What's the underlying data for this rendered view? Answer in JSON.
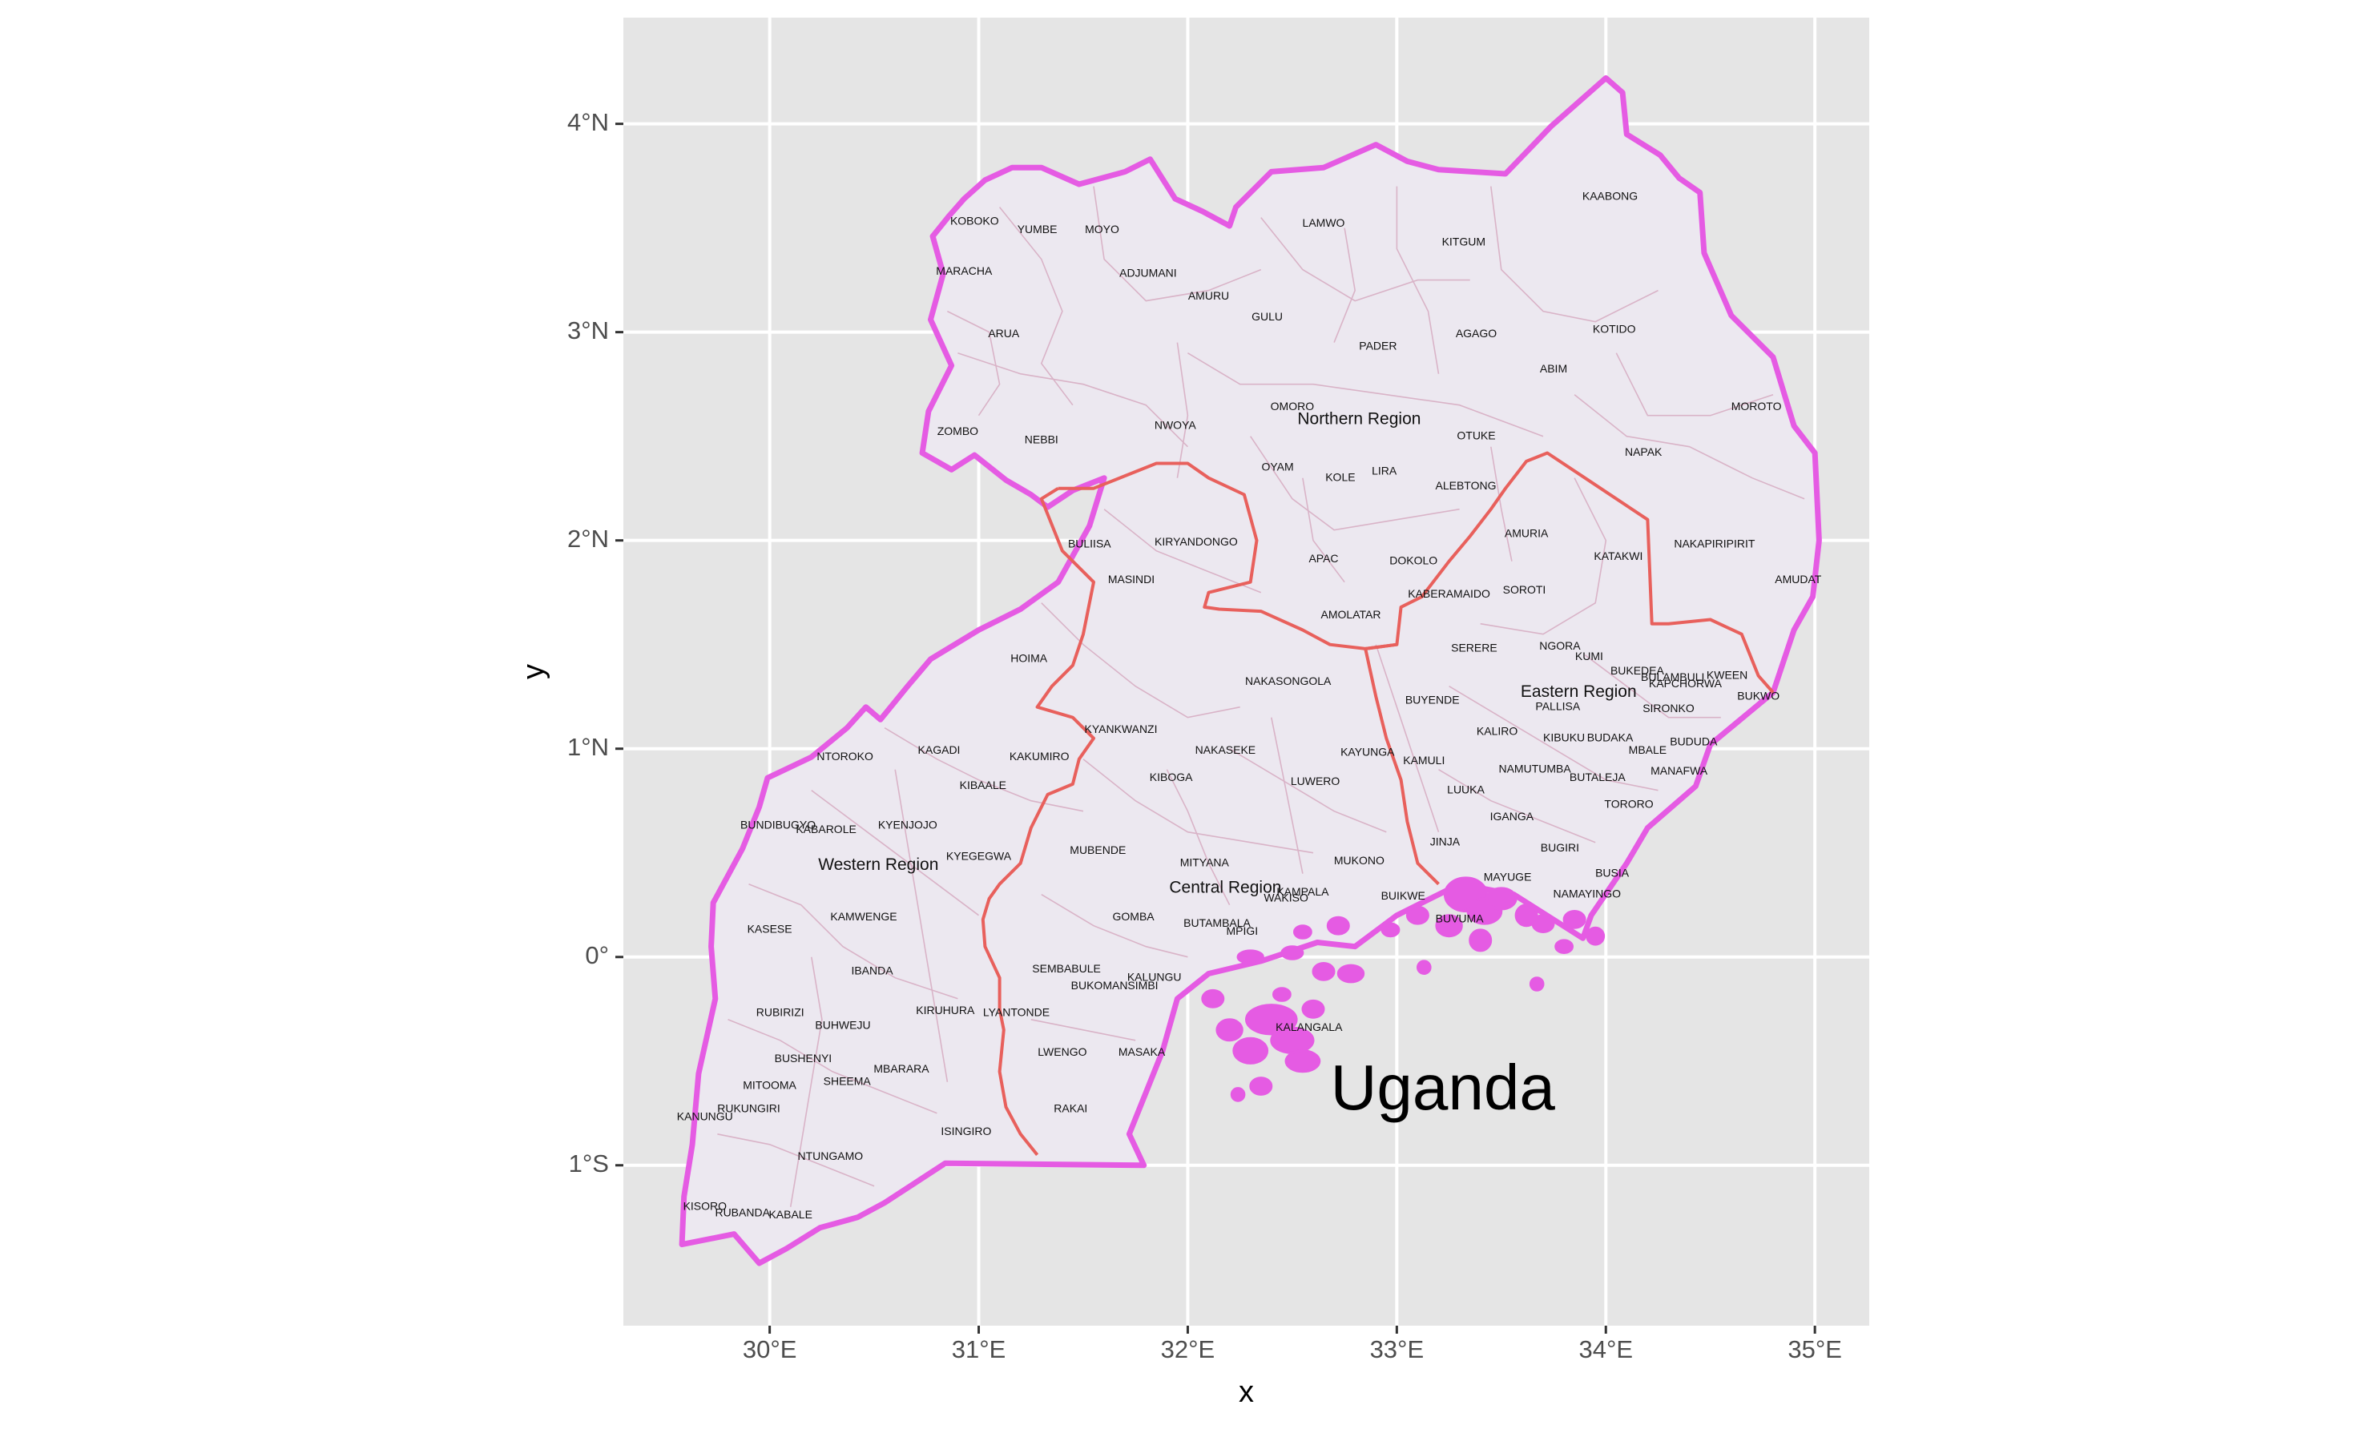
{
  "map": {
    "title_label": "Uganda",
    "axes": {
      "x": {
        "label": "x",
        "range": [
          29.3,
          35.26
        ],
        "ticks": [
          {
            "value": 30,
            "label": "30°E"
          },
          {
            "value": 31,
            "label": "31°E"
          },
          {
            "value": 32,
            "label": "32°E"
          },
          {
            "value": 33,
            "label": "33°E"
          },
          {
            "value": 34,
            "label": "34°E"
          },
          {
            "value": 35,
            "label": "35°E"
          }
        ]
      },
      "y": {
        "label": "y",
        "range": [
          -1.77,
          4.51
        ],
        "ticks": [
          {
            "value": 4,
            "label": "4°N"
          },
          {
            "value": 3,
            "label": "3°N"
          },
          {
            "value": 2,
            "label": "2°N"
          },
          {
            "value": 1,
            "label": "1°N"
          },
          {
            "value": 0,
            "label": "0°"
          },
          {
            "value": -1,
            "label": "1°S"
          }
        ]
      }
    },
    "colors": {
      "panel": "#e5e5e5",
      "grid": "#ffffff",
      "land": "#ece8f0",
      "country_border": "#e55be3",
      "region_border": "#e8605c",
      "district_border": "#d9b3c7"
    },
    "regions": [
      {
        "name": "Northern Region",
        "lon": 32.82,
        "lat": 2.58
      },
      {
        "name": "Eastern Region",
        "lon": 33.87,
        "lat": 1.27
      },
      {
        "name": "Western Region",
        "lon": 30.52,
        "lat": 0.44
      },
      {
        "name": "Central Region",
        "lon": 32.18,
        "lat": 0.33
      }
    ],
    "districts": [
      {
        "name": "KOBOKO",
        "lon": 30.98,
        "lat": 3.53
      },
      {
        "name": "YUMBE",
        "lon": 31.28,
        "lat": 3.49
      },
      {
        "name": "MOYO",
        "lon": 31.59,
        "lat": 3.49
      },
      {
        "name": "MARACHA",
        "lon": 30.93,
        "lat": 3.29
      },
      {
        "name": "ADJUMANI",
        "lon": 31.81,
        "lat": 3.28
      },
      {
        "name": "LAMWO",
        "lon": 32.65,
        "lat": 3.52
      },
      {
        "name": "KITGUM",
        "lon": 33.32,
        "lat": 3.43
      },
      {
        "name": "KAABONG",
        "lon": 34.02,
        "lat": 3.65
      },
      {
        "name": "AMURU",
        "lon": 32.1,
        "lat": 3.17
      },
      {
        "name": "GULU",
        "lon": 32.38,
        "lat": 3.07
      },
      {
        "name": "ARUA",
        "lon": 31.12,
        "lat": 2.99
      },
      {
        "name": "AGAGO",
        "lon": 33.38,
        "lat": 2.99
      },
      {
        "name": "KOTIDO",
        "lon": 34.04,
        "lat": 3.01
      },
      {
        "name": "PADER",
        "lon": 32.91,
        "lat": 2.93
      },
      {
        "name": "ABIM",
        "lon": 33.75,
        "lat": 2.82
      },
      {
        "name": "OMORO",
        "lon": 32.5,
        "lat": 2.64
      },
      {
        "name": "MOROTO",
        "lon": 34.72,
        "lat": 2.64
      },
      {
        "name": "ZOMBO",
        "lon": 30.9,
        "lat": 2.52
      },
      {
        "name": "NEBBI",
        "lon": 31.3,
        "lat": 2.48
      },
      {
        "name": "NWOYA",
        "lon": 31.94,
        "lat": 2.55
      },
      {
        "name": "OTUKE",
        "lon": 33.38,
        "lat": 2.5
      },
      {
        "name": "NAPAK",
        "lon": 34.18,
        "lat": 2.42
      },
      {
        "name": "OYAM",
        "lon": 32.43,
        "lat": 2.35
      },
      {
        "name": "KOLE",
        "lon": 32.73,
        "lat": 2.3
      },
      {
        "name": "LIRA",
        "lon": 32.94,
        "lat": 2.33
      },
      {
        "name": "ALEBTONG",
        "lon": 33.33,
        "lat": 2.26
      },
      {
        "name": "AMURIA",
        "lon": 33.62,
        "lat": 2.03
      },
      {
        "name": "BULIISA",
        "lon": 31.53,
        "lat": 1.98
      },
      {
        "name": "KIRYANDONGO",
        "lon": 32.04,
        "lat": 1.99
      },
      {
        "name": "KATAKWI",
        "lon": 34.06,
        "lat": 1.92
      },
      {
        "name": "NAKAPIRIPIRIT",
        "lon": 34.52,
        "lat": 1.98
      },
      {
        "name": "APAC",
        "lon": 32.65,
        "lat": 1.91
      },
      {
        "name": "DOKOLO",
        "lon": 33.08,
        "lat": 1.9
      },
      {
        "name": "AMUDAT",
        "lon": 34.92,
        "lat": 1.81
      },
      {
        "name": "MASINDI",
        "lon": 31.73,
        "lat": 1.81
      },
      {
        "name": "SOROTI",
        "lon": 33.61,
        "lat": 1.76
      },
      {
        "name": "KABERAMAIDO",
        "lon": 33.25,
        "lat": 1.74
      },
      {
        "name": "AMOLATAR",
        "lon": 32.78,
        "lat": 1.64
      },
      {
        "name": "SERERE",
        "lon": 33.37,
        "lat": 1.48
      },
      {
        "name": "NGORA",
        "lon": 33.78,
        "lat": 1.49
      },
      {
        "name": "HOIMA",
        "lon": 31.24,
        "lat": 1.43
      },
      {
        "name": "KUMI",
        "lon": 33.92,
        "lat": 1.44
      },
      {
        "name": "BUKEDEA",
        "lon": 34.15,
        "lat": 1.37
      },
      {
        "name": "BULAMBULI",
        "lon": 34.32,
        "lat": 1.34
      },
      {
        "name": "KWEEN",
        "lon": 34.58,
        "lat": 1.35
      },
      {
        "name": "KAPCHORWA",
        "lon": 34.38,
        "lat": 1.31
      },
      {
        "name": "NAKASONGOLA",
        "lon": 32.48,
        "lat": 1.32
      },
      {
        "name": "BUKWO",
        "lon": 34.73,
        "lat": 1.25
      },
      {
        "name": "BUYENDE",
        "lon": 33.17,
        "lat": 1.23
      },
      {
        "name": "PALLISA",
        "lon": 33.77,
        "lat": 1.2
      },
      {
        "name": "SIRONKO",
        "lon": 34.3,
        "lat": 1.19
      },
      {
        "name": "KYANKWANZI",
        "lon": 31.68,
        "lat": 1.09
      },
      {
        "name": "KALIRO",
        "lon": 33.48,
        "lat": 1.08
      },
      {
        "name": "KIBUKU",
        "lon": 33.8,
        "lat": 1.05
      },
      {
        "name": "BUDAKA",
        "lon": 34.02,
        "lat": 1.05
      },
      {
        "name": "BUDUDA",
        "lon": 34.42,
        "lat": 1.03
      },
      {
        "name": "KAGADI",
        "lon": 30.81,
        "lat": 0.99
      },
      {
        "name": "NAKASEKE",
        "lon": 32.18,
        "lat": 0.99
      },
      {
        "name": "KAYUNGA",
        "lon": 32.86,
        "lat": 0.98
      },
      {
        "name": "MBALE",
        "lon": 34.2,
        "lat": 0.99
      },
      {
        "name": "NTOROKO",
        "lon": 30.36,
        "lat": 0.96
      },
      {
        "name": "KAKUMIRO",
        "lon": 31.29,
        "lat": 0.96
      },
      {
        "name": "KAMULI",
        "lon": 33.13,
        "lat": 0.94
      },
      {
        "name": "NAMUTUMBA",
        "lon": 33.66,
        "lat": 0.9
      },
      {
        "name": "BUTALEJA",
        "lon": 33.96,
        "lat": 0.86
      },
      {
        "name": "MANAFWA",
        "lon": 34.35,
        "lat": 0.89
      },
      {
        "name": "KIBOGA",
        "lon": 31.92,
        "lat": 0.86
      },
      {
        "name": "LUWERO",
        "lon": 32.61,
        "lat": 0.84
      },
      {
        "name": "KIBAALE",
        "lon": 31.02,
        "lat": 0.82
      },
      {
        "name": "LUUKA",
        "lon": 33.33,
        "lat": 0.8
      },
      {
        "name": "TORORO",
        "lon": 34.11,
        "lat": 0.73
      },
      {
        "name": "IGANGA",
        "lon": 33.55,
        "lat": 0.67
      },
      {
        "name": "BUNDIBUGYO",
        "lon": 30.04,
        "lat": 0.63
      },
      {
        "name": "KABAROLE",
        "lon": 30.27,
        "lat": 0.61
      },
      {
        "name": "KYENJOJO",
        "lon": 30.66,
        "lat": 0.63
      },
      {
        "name": "JINJA",
        "lon": 33.23,
        "lat": 0.55
      },
      {
        "name": "MUBENDE",
        "lon": 31.57,
        "lat": 0.51
      },
      {
        "name": "BUGIRI",
        "lon": 33.78,
        "lat": 0.52
      },
      {
        "name": "KYEGEGWA",
        "lon": 31.0,
        "lat": 0.48
      },
      {
        "name": "MITYANA",
        "lon": 32.08,
        "lat": 0.45
      },
      {
        "name": "MUKONO",
        "lon": 32.82,
        "lat": 0.46
      },
      {
        "name": "BUSIA",
        "lon": 34.03,
        "lat": 0.4
      },
      {
        "name": "MAYUGE",
        "lon": 33.53,
        "lat": 0.38
      },
      {
        "name": "KAMPALA",
        "lon": 32.55,
        "lat": 0.31
      },
      {
        "name": "WAKISO",
        "lon": 32.47,
        "lat": 0.28
      },
      {
        "name": "BUIKWE",
        "lon": 33.03,
        "lat": 0.29
      },
      {
        "name": "NAMAYINGO",
        "lon": 33.91,
        "lat": 0.3
      },
      {
        "name": "KAMWENGE",
        "lon": 30.45,
        "lat": 0.19
      },
      {
        "name": "GOMBA",
        "lon": 31.74,
        "lat": 0.19
      },
      {
        "name": "BUVUMA",
        "lon": 33.3,
        "lat": 0.18
      },
      {
        "name": "BUTAMBALA",
        "lon": 32.14,
        "lat": 0.16
      },
      {
        "name": "MPIGI",
        "lon": 32.26,
        "lat": 0.12
      },
      {
        "name": "KASESE",
        "lon": 30.0,
        "lat": 0.13
      },
      {
        "name": "IBANDA",
        "lon": 30.49,
        "lat": -0.07
      },
      {
        "name": "SEMBABULE",
        "lon": 31.42,
        "lat": -0.06
      },
      {
        "name": "KALUNGU",
        "lon": 31.84,
        "lat": -0.1
      },
      {
        "name": "BUKOMANSIMBI",
        "lon": 31.65,
        "lat": -0.14
      },
      {
        "name": "RUBIRIZI",
        "lon": 30.05,
        "lat": -0.27
      },
      {
        "name": "KIRUHURA",
        "lon": 30.84,
        "lat": -0.26
      },
      {
        "name": "LYANTONDE",
        "lon": 31.18,
        "lat": -0.27
      },
      {
        "name": "BUHWEJU",
        "lon": 30.35,
        "lat": -0.33
      },
      {
        "name": "KALANGALA",
        "lon": 32.58,
        "lat": -0.34
      },
      {
        "name": "LWENGO",
        "lon": 31.4,
        "lat": -0.46
      },
      {
        "name": "MASAKA",
        "lon": 31.78,
        "lat": -0.46
      },
      {
        "name": "BUSHENYI",
        "lon": 30.16,
        "lat": -0.49
      },
      {
        "name": "MBARARA",
        "lon": 30.63,
        "lat": -0.54
      },
      {
        "name": "MITOOMA",
        "lon": 30.0,
        "lat": -0.62
      },
      {
        "name": "SHEEMA",
        "lon": 30.37,
        "lat": -0.6
      },
      {
        "name": "RUKUNGIRI",
        "lon": 29.9,
        "lat": -0.73
      },
      {
        "name": "KANUNGU",
        "lon": 29.69,
        "lat": -0.77
      },
      {
        "name": "RAKAI",
        "lon": 31.44,
        "lat": -0.73
      },
      {
        "name": "ISINGIRO",
        "lon": 30.94,
        "lat": -0.84
      },
      {
        "name": "NTUNGAMO",
        "lon": 30.29,
        "lat": -0.96
      },
      {
        "name": "KISORO",
        "lon": 29.69,
        "lat": -1.2
      },
      {
        "name": "RUBANDA",
        "lon": 29.87,
        "lat": -1.23
      },
      {
        "name": "KABALE",
        "lon": 30.1,
        "lat": -1.24
      }
    ]
  }
}
